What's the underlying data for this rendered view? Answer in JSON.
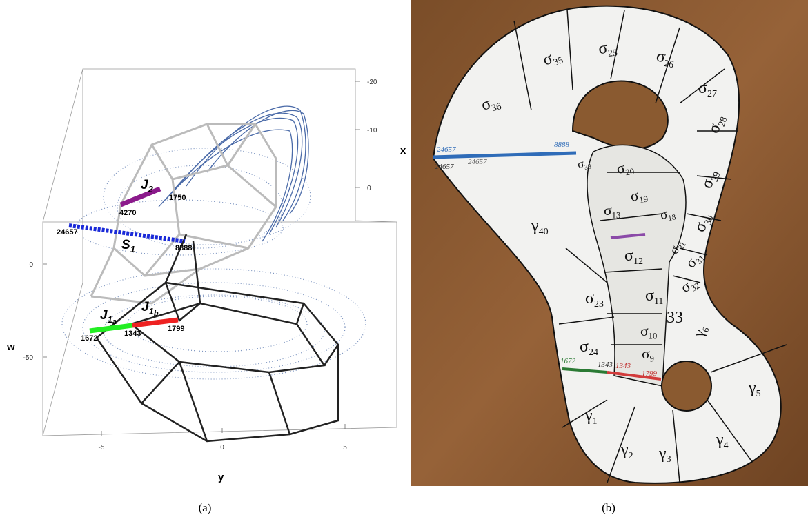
{
  "panel_a": {
    "caption": "(a)",
    "axes": {
      "x": {
        "label": "x",
        "ticks": [
          -20,
          -10,
          0
        ]
      },
      "w": {
        "label": "w",
        "ticks": [
          0,
          -50
        ]
      },
      "y": {
        "label": "y",
        "ticks": [
          -5,
          0,
          5
        ]
      }
    },
    "curve_labels": [
      {
        "main": "J",
        "sub": "2"
      },
      {
        "main": "S",
        "sub": "1"
      },
      {
        "main": "J",
        "sub": "1",
        "subsub": "a"
      },
      {
        "main": "J",
        "sub": "1",
        "subsub": "b"
      }
    ],
    "point_labels": [
      4270,
      1750,
      24657,
      8888,
      1672,
      1343,
      1799
    ]
  },
  "panel_b": {
    "caption": "(b)",
    "segments": [
      {
        "symbol": "σ",
        "sub": "36"
      },
      {
        "symbol": "σ",
        "sub": "35"
      },
      {
        "symbol": "σ",
        "sub": "25"
      },
      {
        "symbol": "σ",
        "sub": "26"
      },
      {
        "symbol": "σ",
        "sub": "27"
      },
      {
        "symbol": "σ",
        "sub": "28"
      },
      {
        "symbol": "σ",
        "sub": "29"
      },
      {
        "symbol": "σ",
        "sub": "30"
      },
      {
        "symbol": "σ",
        "sub": "31"
      },
      {
        "symbol": "σ",
        "sub": "32"
      },
      {
        "symbol": "σ",
        "sub": "20"
      },
      {
        "symbol": "σ",
        "sub": "19"
      },
      {
        "symbol": "σ",
        "sub": "18"
      },
      {
        "symbol": "σ",
        "sub": "13"
      },
      {
        "symbol": "σ",
        "sub": "12"
      },
      {
        "symbol": "σ",
        "sub": "11"
      },
      {
        "symbol": "σ",
        "sub": "10"
      },
      {
        "symbol": "σ",
        "sub": "9"
      },
      {
        "symbol": "σ",
        "sub": "23"
      },
      {
        "symbol": "σ",
        "sub": "24"
      },
      {
        "symbol": "σ",
        "sub": "38"
      },
      {
        "symbol": "γ",
        "sub": "40"
      },
      {
        "symbol": "γ",
        "sub": "1"
      },
      {
        "symbol": "γ",
        "sub": "2"
      },
      {
        "symbol": "γ",
        "sub": "3"
      },
      {
        "symbol": "γ",
        "sub": "4"
      },
      {
        "symbol": "γ",
        "sub": "5"
      },
      {
        "symbol": "γ",
        "sub": "6"
      },
      {
        "symbol": "σ",
        "sub": "21"
      }
    ],
    "fragments": [
      "33"
    ],
    "point_labels": [
      24657,
      8888,
      24657,
      24657,
      1672,
      1343,
      1343,
      1799
    ]
  }
}
